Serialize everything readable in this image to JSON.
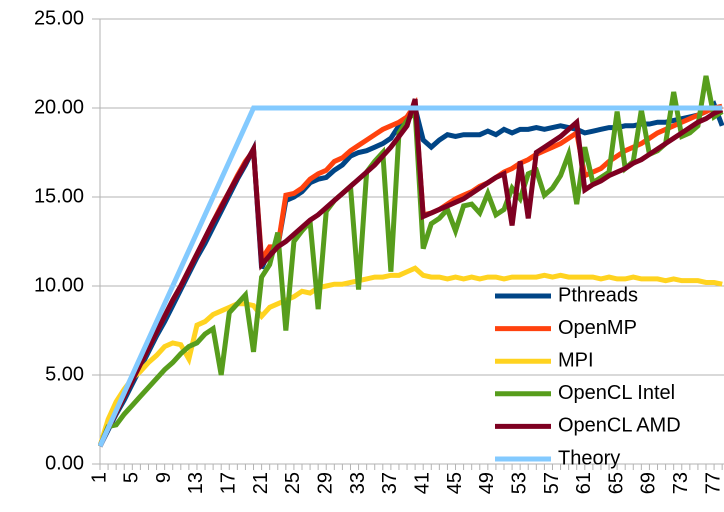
{
  "chart_data": {
    "type": "line",
    "categories": [
      "1",
      null,
      null,
      null,
      "5",
      null,
      null,
      null,
      "9",
      null,
      null,
      null,
      "13",
      null,
      null,
      null,
      "17",
      null,
      null,
      null,
      "21",
      null,
      null,
      null,
      "25",
      null,
      null,
      null,
      "29",
      null,
      null,
      null,
      "33",
      null,
      null,
      null,
      "37",
      null,
      null,
      null,
      "41",
      null,
      null,
      null,
      "45",
      null,
      null,
      null,
      "49",
      null,
      null,
      null,
      "53",
      null,
      null,
      null,
      "57",
      null,
      null,
      null,
      "61",
      null,
      null,
      null,
      "65",
      null,
      null,
      null,
      "69",
      null,
      null,
      null,
      "73",
      null,
      null,
      null,
      "77",
      null
    ],
    "ylim": [
      0,
      25
    ],
    "yticks": [
      {
        "value": 0,
        "label": "0.00"
      },
      {
        "value": 5,
        "label": "5.00"
      },
      {
        "value": 10,
        "label": "10.00"
      },
      {
        "value": 15,
        "label": "15.00"
      },
      {
        "value": 20,
        "label": "20.00"
      },
      {
        "value": 25,
        "label": "25.00"
      }
    ],
    "grid": true,
    "legend": "right",
    "series": [
      {
        "name": "Pthreads",
        "color": "#004586",
        "values": [
          1.0,
          1.9,
          2.8,
          3.6,
          4.5,
          5.4,
          6.3,
          7.2,
          8.0,
          8.9,
          9.8,
          10.7,
          11.6,
          12.4,
          13.3,
          14.2,
          15.1,
          16.0,
          16.8,
          17.7,
          11.0,
          12.0,
          12.2,
          14.8,
          15.0,
          15.3,
          15.8,
          16.0,
          16.1,
          16.5,
          16.8,
          17.3,
          17.5,
          17.6,
          17.8,
          18.0,
          18.3,
          19.0,
          19.5,
          20.0,
          18.2,
          17.8,
          18.2,
          18.5,
          18.4,
          18.5,
          18.5,
          18.5,
          18.7,
          18.5,
          18.8,
          18.6,
          18.8,
          18.8,
          18.9,
          18.8,
          18.9,
          19.0,
          18.9,
          18.8,
          18.6,
          18.7,
          18.8,
          18.9,
          18.9,
          19.0,
          19.0,
          19.1,
          19.1,
          19.2,
          19.2,
          19.3,
          19.4,
          19.5,
          19.6,
          19.8,
          20.2,
          19.0
        ]
      },
      {
        "name": "OpenMP",
        "color": "#ff420e",
        "values": [
          1.0,
          2.0,
          2.9,
          3.8,
          4.7,
          5.6,
          6.5,
          7.4,
          8.3,
          9.2,
          10.0,
          10.9,
          11.8,
          12.7,
          13.6,
          14.5,
          15.3,
          16.2,
          17.0,
          17.6,
          11.5,
          12.2,
          12.2,
          15.1,
          15.2,
          15.5,
          16.0,
          16.3,
          16.5,
          17.0,
          17.2,
          17.6,
          17.9,
          18.2,
          18.5,
          18.8,
          19.0,
          19.2,
          19.5,
          20.2,
          14.0,
          14.1,
          14.3,
          14.6,
          14.9,
          15.1,
          15.3,
          15.6,
          15.8,
          16.1,
          16.4,
          16.6,
          16.9,
          17.1,
          17.4,
          17.6,
          17.8,
          18.0,
          18.3,
          18.6,
          16.2,
          16.4,
          16.6,
          17.0,
          17.3,
          17.6,
          17.8,
          18.0,
          18.3,
          18.6,
          18.8,
          19.0,
          19.2,
          19.4,
          19.6,
          19.8,
          20.0,
          20.1
        ]
      },
      {
        "name": "MPI",
        "color": "#ffd320",
        "values": [
          1.0,
          2.5,
          3.5,
          4.2,
          4.8,
          5.2,
          5.7,
          6.1,
          6.6,
          6.8,
          6.7,
          5.9,
          7.8,
          8.0,
          8.4,
          8.6,
          8.8,
          9.0,
          9.0,
          8.9,
          8.3,
          8.8,
          9.0,
          9.2,
          9.4,
          9.7,
          9.6,
          9.9,
          10.0,
          10.1,
          10.1,
          10.2,
          10.3,
          10.4,
          10.5,
          10.5,
          10.6,
          10.6,
          10.8,
          11.0,
          10.6,
          10.5,
          10.5,
          10.4,
          10.5,
          10.4,
          10.5,
          10.4,
          10.5,
          10.5,
          10.4,
          10.5,
          10.5,
          10.5,
          10.5,
          10.6,
          10.5,
          10.6,
          10.5,
          10.5,
          10.5,
          10.5,
          10.4,
          10.5,
          10.4,
          10.4,
          10.5,
          10.4,
          10.4,
          10.4,
          10.3,
          10.4,
          10.3,
          10.3,
          10.3,
          10.2,
          10.2,
          10.1
        ]
      },
      {
        "name": "OpenCL Intel",
        "color": "#579d1c",
        "values": [
          1.0,
          2.1,
          2.2,
          2.8,
          3.3,
          3.8,
          4.3,
          4.8,
          5.3,
          5.7,
          6.2,
          6.6,
          6.8,
          7.3,
          7.6,
          5.0,
          8.5,
          9.0,
          9.5,
          6.3,
          10.5,
          11.2,
          13.0,
          7.5,
          12.5,
          13.1,
          13.6,
          8.7,
          14.2,
          14.8,
          15.2,
          15.6,
          9.8,
          16.4,
          17.0,
          17.5,
          10.8,
          18.6,
          19.3,
          19.8,
          12.1,
          13.5,
          13.8,
          14.3,
          13.1,
          14.5,
          14.6,
          14.1,
          15.2,
          14.0,
          14.3,
          15.5,
          14.9,
          16.3,
          16.5,
          15.1,
          15.5,
          16.2,
          17.4,
          14.6,
          17.8,
          15.8,
          16.1,
          16.4,
          19.8,
          16.6,
          17.0,
          19.9,
          17.4,
          17.6,
          18.0,
          20.9,
          18.4,
          18.6,
          19.0,
          21.8,
          19.5,
          19.8
        ]
      },
      {
        "name": "OpenCL AMD",
        "color": "#7e0021",
        "values": [
          1.0,
          2.0,
          2.9,
          3.8,
          4.7,
          5.6,
          6.5,
          7.4,
          8.3,
          9.2,
          10.0,
          10.9,
          11.8,
          12.7,
          13.6,
          14.4,
          15.3,
          16.1,
          16.9,
          17.7,
          11.2,
          11.7,
          12.2,
          12.5,
          12.9,
          13.3,
          13.7,
          14.0,
          14.4,
          14.8,
          15.2,
          15.6,
          16.0,
          16.4,
          16.8,
          17.3,
          17.8,
          18.4,
          19.0,
          20.5,
          13.9,
          14.1,
          14.3,
          14.5,
          14.7,
          14.9,
          15.2,
          15.5,
          15.8,
          16.1,
          16.3,
          13.4,
          17.0,
          13.8,
          17.5,
          17.8,
          18.1,
          18.4,
          18.8,
          19.2,
          15.4,
          15.7,
          15.9,
          16.2,
          16.4,
          16.6,
          16.9,
          17.1,
          17.4,
          17.7,
          18.0,
          18.3,
          18.6,
          18.9,
          19.2,
          19.4,
          19.7,
          19.9
        ]
      },
      {
        "name": "Theory",
        "color": "#83caff",
        "values": [
          1,
          2,
          3,
          4,
          5,
          6,
          7,
          8,
          9,
          10,
          11,
          12,
          13,
          14,
          15,
          16,
          17,
          18,
          19,
          20,
          20,
          20,
          20,
          20,
          20,
          20,
          20,
          20,
          20,
          20,
          20,
          20,
          20,
          20,
          20,
          20,
          20,
          20,
          20,
          20,
          20,
          20,
          20,
          20,
          20,
          20,
          20,
          20,
          20,
          20,
          20,
          20,
          20,
          20,
          20,
          20,
          20,
          20,
          20,
          20,
          20,
          20,
          20,
          20,
          20,
          20,
          20,
          20,
          20,
          20,
          20,
          20,
          20,
          20,
          20,
          20,
          20,
          20
        ]
      }
    ]
  }
}
